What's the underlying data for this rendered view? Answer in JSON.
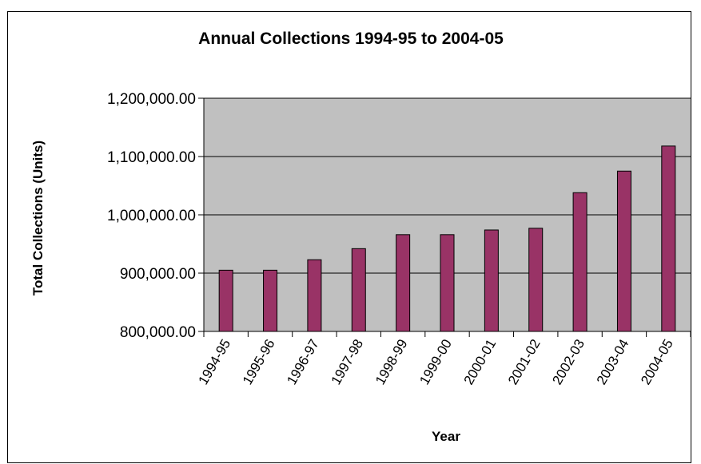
{
  "chart_data": {
    "type": "bar",
    "title": "Annual Collections 1994-95 to 2004-05",
    "xlabel": "Year",
    "ylabel": "Total Collections (Units)",
    "categories": [
      "1994-95",
      "1995-96",
      "1996-97",
      "1997-98",
      "1998-99",
      "1999-00",
      "2000-01",
      "2001-02",
      "2002-03",
      "2003-04",
      "2004-05"
    ],
    "values": [
      905000,
      905000,
      923000,
      942000,
      966000,
      966000,
      974000,
      977000,
      1038000,
      1075000,
      1118000
    ],
    "ylim": [
      800000,
      1200000
    ],
    "yticks": [
      800000,
      900000,
      1000000,
      1100000,
      1200000
    ],
    "ytick_labels": [
      "800,000.00",
      "900,000.00",
      "1,000,000.00",
      "1,100,000.00",
      "1,200,000.00"
    ],
    "grid": true,
    "legend": "none",
    "colors": {
      "bar": "#993366",
      "plot_background": "#c0c0c0",
      "gridline": "#000000"
    }
  }
}
